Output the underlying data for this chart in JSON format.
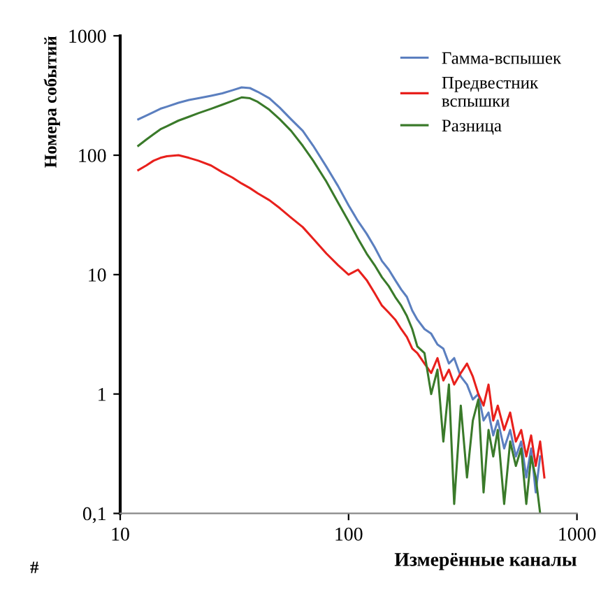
{
  "chart_data": {
    "type": "line",
    "ylabel": "Номера событий",
    "xlabel": "Измерённые каналы",
    "log": "xy",
    "xlim": [
      10,
      1000
    ],
    "ylim": [
      0.1,
      1000
    ],
    "xticks": [
      10,
      100,
      1000
    ],
    "yticks": [
      {
        "value": 0.1,
        "label": "0,1"
      },
      1,
      10,
      100,
      1000
    ],
    "x": [
      12,
      13,
      14,
      15,
      16,
      18,
      20,
      22,
      25,
      28,
      31,
      34,
      37,
      40,
      45,
      50,
      56,
      63,
      70,
      80,
      90,
      100,
      110,
      120,
      130,
      140,
      150,
      160,
      170,
      180,
      190,
      200,
      215,
      230,
      245,
      260,
      275,
      290,
      310,
      330,
      350,
      370,
      390,
      410,
      430,
      450,
      480,
      510,
      540,
      570,
      600,
      630,
      660,
      690,
      720
    ],
    "series": [
      {
        "name": "Гамма-вспышек",
        "color": "#5b7fbf",
        "values": [
          200,
          215,
          230,
          245,
          255,
          275,
          290,
          300,
          315,
          330,
          350,
          370,
          365,
          340,
          300,
          250,
          200,
          160,
          120,
          80,
          55,
          38,
          28,
          22,
          17,
          13,
          11,
          9,
          7.5,
          6.5,
          5,
          4.2,
          3.5,
          3.2,
          2.6,
          2.4,
          1.8,
          2.0,
          1.4,
          1.2,
          0.9,
          1.0,
          0.6,
          0.7,
          0.45,
          0.6,
          0.35,
          0.5,
          0.3,
          0.4,
          0.2,
          0.35,
          0.15,
          0.3,
          null
        ]
      },
      {
        "name": "Предвестник\nвспышки",
        "color": "#e8201c",
        "values": [
          75,
          82,
          90,
          95,
          98,
          100,
          95,
          90,
          82,
          72,
          65,
          58,
          53,
          48,
          42,
          36,
          30,
          25,
          20,
          15,
          12,
          10,
          11,
          9,
          7,
          5.5,
          4.8,
          4.2,
          3.5,
          3.0,
          2.4,
          2.2,
          1.8,
          1.5,
          2.0,
          1.3,
          1.6,
          1.2,
          1.5,
          1.8,
          1.4,
          1.0,
          0.8,
          1.2,
          0.6,
          0.8,
          0.5,
          0.7,
          0.4,
          0.5,
          0.3,
          0.45,
          0.25,
          0.4,
          0.2
        ]
      },
      {
        "name": "Разница",
        "color": "#3a7a2a",
        "values": [
          120,
          135,
          150,
          165,
          175,
          195,
          210,
          225,
          245,
          265,
          285,
          305,
          300,
          280,
          240,
          200,
          160,
          120,
          90,
          60,
          40,
          28,
          20,
          15,
          12,
          9.5,
          8,
          6.5,
          5.5,
          4.5,
          3.5,
          2.5,
          2.2,
          1.0,
          1.6,
          0.4,
          1.2,
          0.12,
          0.8,
          0.2,
          0.6,
          0.9,
          0.15,
          0.5,
          0.3,
          0.5,
          0.12,
          0.4,
          0.25,
          0.35,
          0.12,
          0.3,
          0.2,
          0.1,
          null
        ]
      }
    ],
    "legend": "top right",
    "grid": false,
    "annotations": [
      "#"
    ]
  }
}
